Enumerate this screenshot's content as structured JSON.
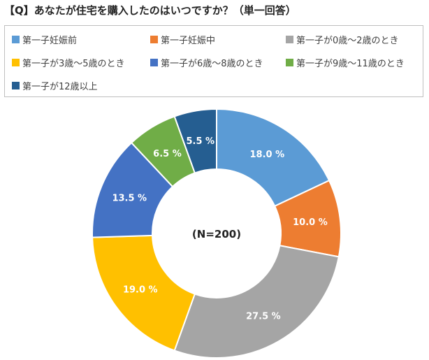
{
  "title": "【Q】あなたが住宅を購入したのはいつですか？（単一回答）",
  "center_label": "(N=200)",
  "chart_data": {
    "type": "pie",
    "categories": [
      "第一子妊娠前",
      "第一子妊娠中",
      "第一子が0歳～2歳のとき",
      "第一子が3歳～5歳のとき",
      "第一子が6歳～8歳のとき",
      "第一子が9歳～11歳のとき",
      "第一子が12歳以上"
    ],
    "values": [
      18.0,
      10.0,
      27.5,
      19.0,
      13.5,
      6.5,
      5.5
    ],
    "value_labels": [
      "18.0 %",
      "10.0 %",
      "27.5 %",
      "19.0 %",
      "13.5 %",
      "6.5 %",
      "5.5 %"
    ],
    "colors": [
      "#5B9BD5",
      "#ED7D31",
      "#A5A5A5",
      "#FFC000",
      "#4472C4",
      "#70AD47",
      "#255E91"
    ],
    "donut": true,
    "legend_position": "top"
  }
}
